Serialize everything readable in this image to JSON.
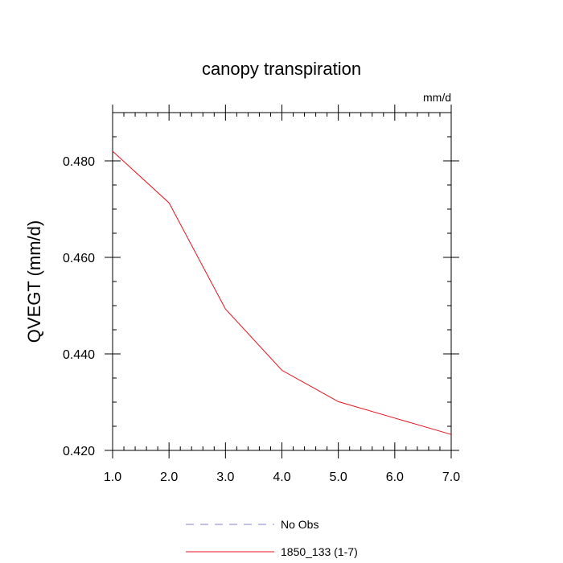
{
  "chart_data": {
    "type": "line",
    "title": "canopy transpiration",
    "units_label": "mm/d",
    "ylabel": "QVEGT  (mm/d)",
    "xlabel": "",
    "xlim": [
      1.0,
      7.0
    ],
    "ylim": [
      0.42,
      0.49
    ],
    "x_ticks": [
      1.0,
      2.0,
      3.0,
      4.0,
      5.0,
      6.0,
      7.0
    ],
    "x_tick_labels": [
      "1.0",
      "2.0",
      "3.0",
      "4.0",
      "5.0",
      "6.0",
      "7.0"
    ],
    "y_ticks": [
      0.42,
      0.44,
      0.46,
      0.48
    ],
    "y_tick_labels": [
      "0.420",
      "0.440",
      "0.460",
      "0.480"
    ],
    "x_minor_step": 0.2,
    "y_minor_step": 0.005,
    "grid": false,
    "series": [
      {
        "name": "No Obs",
        "style": "dashed",
        "color": "#8080d0",
        "x": [],
        "values": []
      },
      {
        "name": "1850_133 (1-7)",
        "style": "solid",
        "color": "#e8101a",
        "x": [
          1.0,
          2.0,
          3.0,
          4.0,
          5.0,
          6.0,
          7.0
        ],
        "values": [
          0.482,
          0.4713,
          0.4493,
          0.4366,
          0.4301,
          0.4267,
          0.4233
        ]
      }
    ],
    "legend_position": "bottom-center"
  }
}
